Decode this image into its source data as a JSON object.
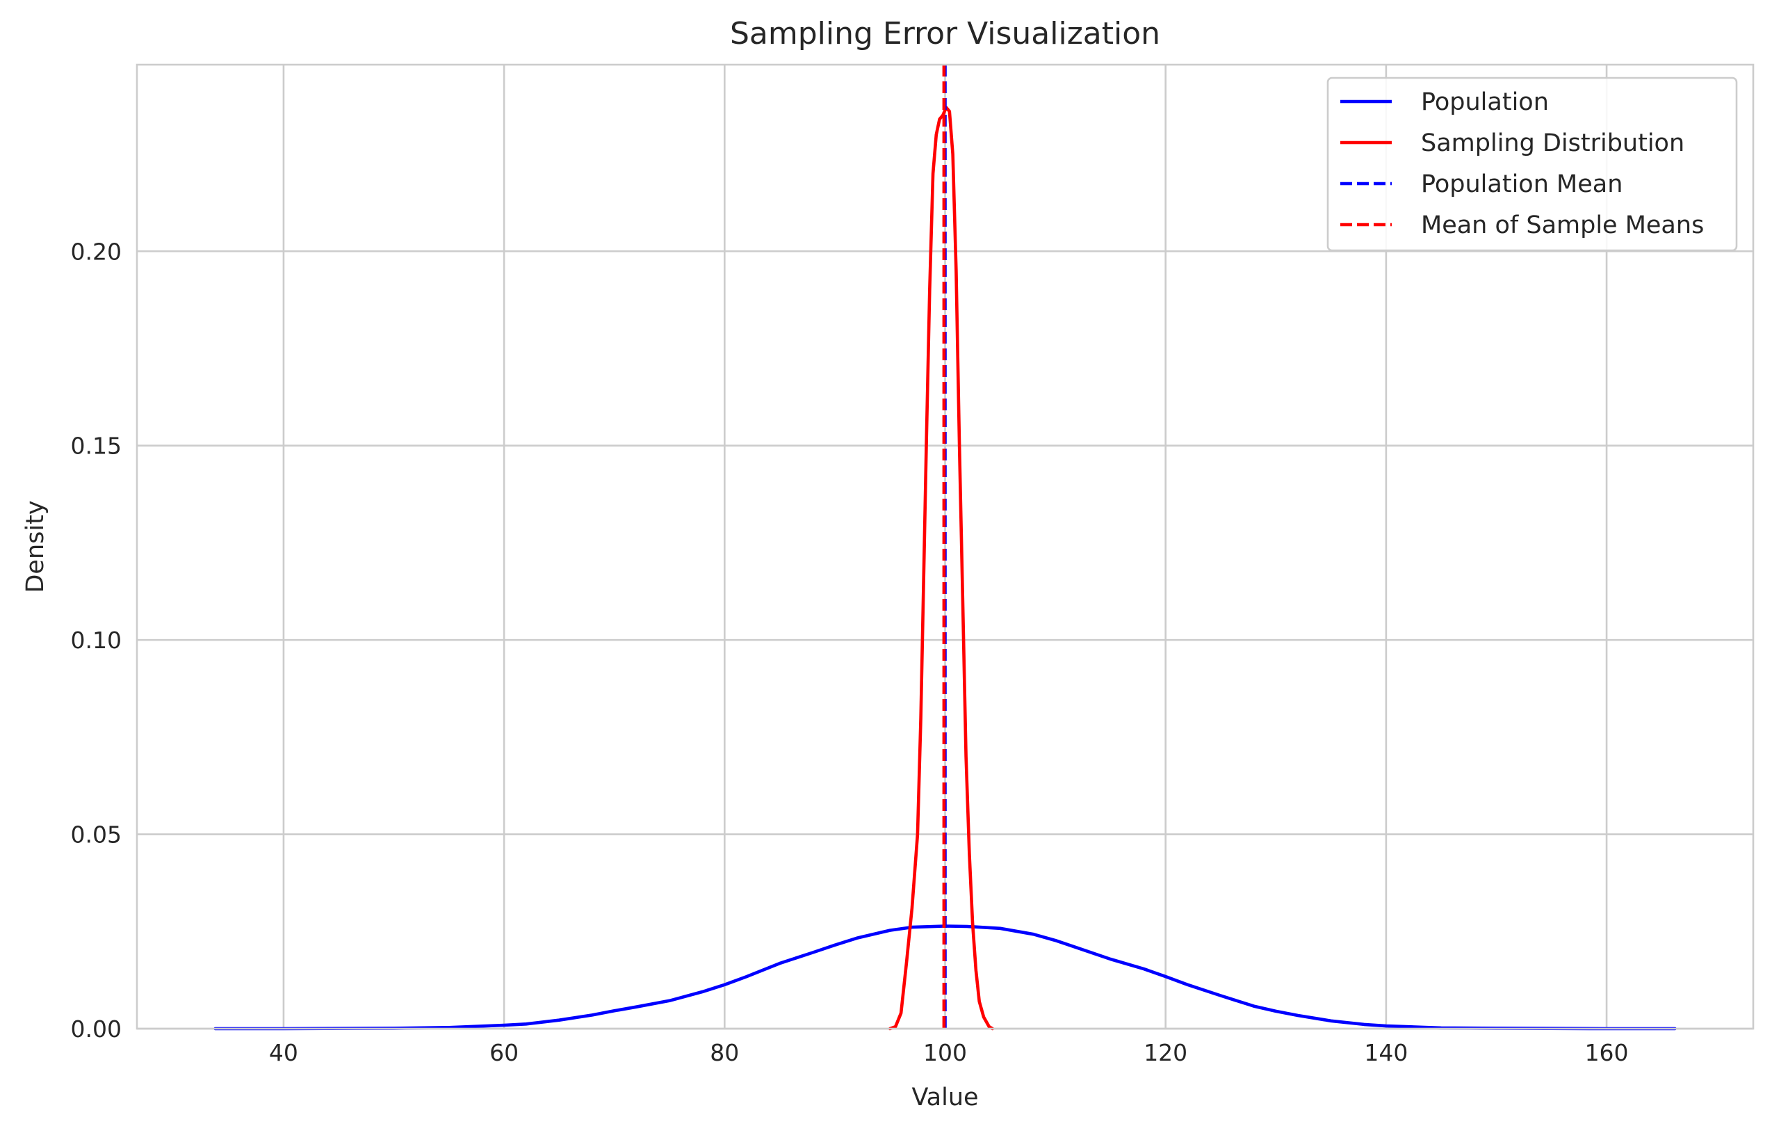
{
  "chart_data": {
    "type": "line",
    "title": "Sampling Error Visualization",
    "xlabel": "Value",
    "ylabel": "Density",
    "xlim": [
      26.7,
      173.3
    ],
    "ylim": [
      0,
      0.248
    ],
    "xticks": [
      40,
      60,
      80,
      100,
      120,
      140,
      160
    ],
    "xtick_labels": [
      "40",
      "60",
      "80",
      "100",
      "120",
      "140",
      "160"
    ],
    "yticks": [
      0.0,
      0.05,
      0.1,
      0.15,
      0.2
    ],
    "ytick_labels": [
      "0.00",
      "0.05",
      "0.10",
      "0.15",
      "0.20"
    ],
    "grid": true,
    "legend_position": "upper right",
    "series": [
      {
        "name": "Population",
        "style": "solid",
        "color": "#0000ff",
        "points": [
          [
            33.8,
            0.0
          ],
          [
            40,
            0.0
          ],
          [
            50,
            0.0001
          ],
          [
            55,
            0.0003
          ],
          [
            60,
            0.0009
          ],
          [
            62,
            0.0012
          ],
          [
            65,
            0.0022
          ],
          [
            68,
            0.0035
          ],
          [
            70,
            0.0046
          ],
          [
            72,
            0.0056
          ],
          [
            75,
            0.0072
          ],
          [
            78,
            0.0095
          ],
          [
            80,
            0.0113
          ],
          [
            82,
            0.0134
          ],
          [
            85,
            0.0168
          ],
          [
            88,
            0.0196
          ],
          [
            90,
            0.0215
          ],
          [
            92,
            0.0233
          ],
          [
            95,
            0.0253
          ],
          [
            97,
            0.0261
          ],
          [
            100,
            0.0264
          ],
          [
            102,
            0.0263
          ],
          [
            105,
            0.0258
          ],
          [
            108,
            0.0243
          ],
          [
            110,
            0.0227
          ],
          [
            112,
            0.0208
          ],
          [
            115,
            0.0179
          ],
          [
            118,
            0.0154
          ],
          [
            120,
            0.0134
          ],
          [
            122,
            0.0113
          ],
          [
            125,
            0.0085
          ],
          [
            128,
            0.0058
          ],
          [
            130,
            0.0045
          ],
          [
            132,
            0.0034
          ],
          [
            135,
            0.002
          ],
          [
            138,
            0.0011
          ],
          [
            140,
            0.0007
          ],
          [
            145,
            0.0002
          ],
          [
            150,
            0.0001
          ],
          [
            160,
            0.0
          ],
          [
            166.2,
            0.0
          ]
        ]
      },
      {
        "name": "Sampling Distribution",
        "style": "solid",
        "color": "#ff0000",
        "points": [
          [
            95.0,
            0.0
          ],
          [
            95.5,
            0.0005
          ],
          [
            96.0,
            0.004
          ],
          [
            96.5,
            0.017
          ],
          [
            97.0,
            0.031
          ],
          [
            97.5,
            0.05
          ],
          [
            97.8,
            0.08
          ],
          [
            98.0,
            0.108
          ],
          [
            98.3,
            0.15
          ],
          [
            98.6,
            0.19
          ],
          [
            98.9,
            0.22
          ],
          [
            99.2,
            0.23
          ],
          [
            99.5,
            0.234
          ],
          [
            99.8,
            0.235
          ],
          [
            100.1,
            0.237
          ],
          [
            100.4,
            0.236
          ],
          [
            100.7,
            0.225
          ],
          [
            101.0,
            0.195
          ],
          [
            101.3,
            0.15
          ],
          [
            101.6,
            0.11
          ],
          [
            101.9,
            0.07
          ],
          [
            102.2,
            0.045
          ],
          [
            102.5,
            0.027
          ],
          [
            102.8,
            0.015
          ],
          [
            103.1,
            0.007
          ],
          [
            103.5,
            0.003
          ],
          [
            104.0,
            0.0005
          ],
          [
            104.3,
            0.0
          ]
        ]
      }
    ],
    "vertical_lines": [
      {
        "name": "Population Mean",
        "x": 100.0,
        "style": "dashed",
        "color": "#0000ff"
      },
      {
        "name": "Mean of Sample Means",
        "x": 99.9,
        "style": "dashed",
        "color": "#ff0000"
      }
    ],
    "legend": [
      {
        "label": "Population",
        "style": "solid",
        "color": "#0000ff"
      },
      {
        "label": "Sampling Distribution",
        "style": "solid",
        "color": "#ff0000"
      },
      {
        "label": "Population Mean",
        "style": "dashed",
        "color": "#0000ff"
      },
      {
        "label": "Mean of Sample Means",
        "style": "dashed",
        "color": "#ff0000"
      }
    ]
  }
}
